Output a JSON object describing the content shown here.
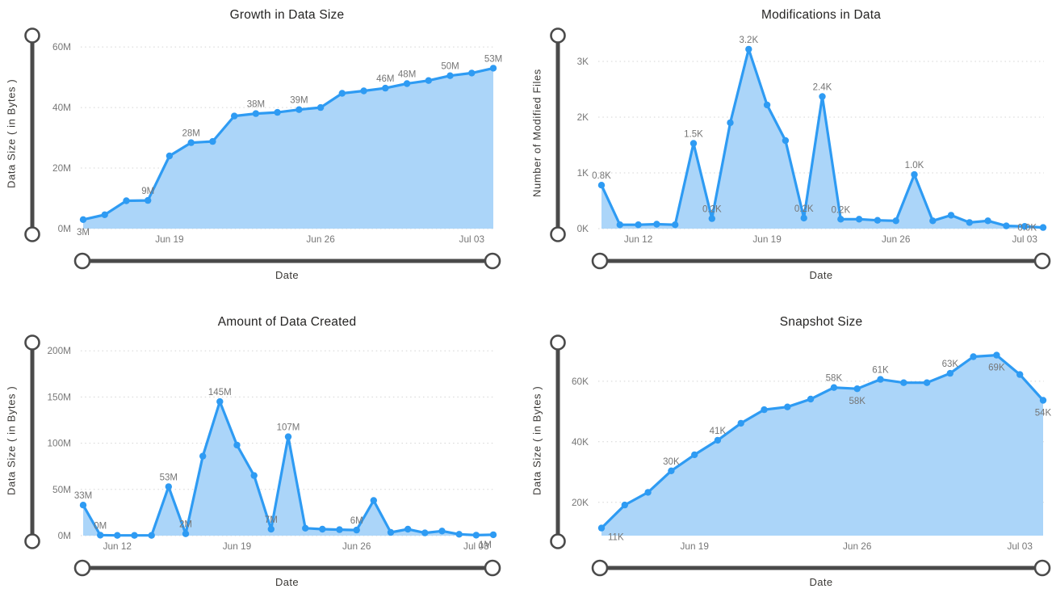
{
  "page": {
    "background": "#ffffff"
  },
  "colors": {
    "line": "#2E9BF3",
    "fill": "#ABD5F9",
    "grid": "#D4D4D4",
    "tick": "#777777",
    "data_label": "#757575",
    "title": "#252423",
    "axis_title": "#3A3835",
    "slider": "#4A4A4A",
    "slider_fill": "#FFFFFF"
  },
  "chart_data": [
    {
      "type": "area",
      "title": "Growth in Data Size",
      "xlabel": "Date",
      "ylabel": "Data Size ( in Bytes )",
      "unit": "M",
      "grid": "dotted-horizontal",
      "legend": "none",
      "ylim": [
        0,
        63.5
      ],
      "y_ticks": [
        {
          "v": 0,
          "label": "0M"
        },
        {
          "v": 20,
          "label": "20M"
        },
        {
          "v": 40,
          "label": "40M"
        },
        {
          "v": 60,
          "label": "60M"
        }
      ],
      "x": [
        "Jun 15",
        "Jun 16",
        "Jun 17",
        "Jun 18",
        "Jun 19",
        "Jun 20",
        "Jun 21",
        "Jun 22",
        "Jun 23",
        "Jun 24",
        "Jun 25",
        "Jun 26",
        "Jun 27",
        "Jun 28",
        "Jun 29",
        "Jun 30",
        "Jul 01",
        "Jul 02",
        "Jul 03",
        "Jul 04"
      ],
      "values": [
        3,
        4.6,
        9.2,
        9.3,
        24,
        28.4,
        28.8,
        37.2,
        38,
        38.4,
        39.3,
        40,
        44.7,
        45.5,
        46.4,
        47.9,
        48.9,
        50.5,
        51.4,
        53
      ],
      "x_ticks": [
        {
          "i": 4,
          "label": "Jun 19"
        },
        {
          "i": 11,
          "label": "Jun 26"
        },
        {
          "i": 18,
          "label": "Jul 03"
        }
      ],
      "point_labels": [
        {
          "i": 0,
          "text": "3M",
          "pos": "below"
        },
        {
          "i": 3,
          "text": "9M",
          "pos": "above"
        },
        {
          "i": 5,
          "text": "28M",
          "pos": "above"
        },
        {
          "i": 8,
          "text": "38M",
          "pos": "above"
        },
        {
          "i": 10,
          "text": "39M",
          "pos": "above"
        },
        {
          "i": 14,
          "text": "46M",
          "pos": "above"
        },
        {
          "i": 15,
          "text": "48M",
          "pos": "above"
        },
        {
          "i": 17,
          "text": "50M",
          "pos": "above"
        },
        {
          "i": 19,
          "text": "53M",
          "pos": "above"
        }
      ]
    },
    {
      "type": "area",
      "title": "Modifications in Data",
      "xlabel": "Date",
      "ylabel": "Number of Modified Files",
      "unit": "K",
      "grid": "dotted-horizontal",
      "legend": "none",
      "ylim": [
        0,
        3.45
      ],
      "y_ticks": [
        {
          "v": 0,
          "label": "0K"
        },
        {
          "v": 1,
          "label": "1K"
        },
        {
          "v": 2,
          "label": "2K"
        },
        {
          "v": 3,
          "label": "3K"
        }
      ],
      "x": [
        "Jun 10",
        "Jun 11",
        "Jun 12",
        "Jun 13",
        "Jun 14",
        "Jun 15",
        "Jun 16",
        "Jun 17",
        "Jun 18",
        "Jun 19",
        "Jun 20",
        "Jun 21",
        "Jun 22",
        "Jun 23",
        "Jun 24",
        "Jun 25",
        "Jun 26",
        "Jun 27",
        "Jun 28",
        "Jun 29",
        "Jun 30",
        "Jul 01",
        "Jul 02",
        "Jul 03",
        "Jul 04"
      ],
      "values": [
        0.78,
        0.07,
        0.07,
        0.08,
        0.07,
        1.53,
        0.18,
        1.9,
        3.22,
        2.22,
        1.58,
        0.19,
        2.37,
        0.17,
        0.17,
        0.15,
        0.14,
        0.97,
        0.14,
        0.24,
        0.11,
        0.14,
        0.05,
        0.04,
        0.02
      ],
      "x_ticks": [
        {
          "i": 2,
          "label": "Jun 12"
        },
        {
          "i": 9,
          "label": "Jun 19"
        },
        {
          "i": 16,
          "label": "Jun 26"
        },
        {
          "i": 23,
          "label": "Jul 03"
        }
      ],
      "point_labels": [
        {
          "i": 0,
          "text": "0.8K",
          "pos": "above"
        },
        {
          "i": 5,
          "text": "1.5K",
          "pos": "above"
        },
        {
          "i": 6,
          "text": "0.2K",
          "pos": "above"
        },
        {
          "i": 8,
          "text": "3.2K",
          "pos": "above"
        },
        {
          "i": 11,
          "text": "0.2K",
          "pos": "above"
        },
        {
          "i": 12,
          "text": "2.4K",
          "pos": "above"
        },
        {
          "i": 13,
          "text": "0.2K",
          "pos": "above"
        },
        {
          "i": 17,
          "text": "1.0K",
          "pos": "above"
        },
        {
          "i": 24,
          "text": "0.0K",
          "pos": "left"
        }
      ]
    },
    {
      "type": "area",
      "title": "Amount of Data Created",
      "xlabel": "Date",
      "ylabel": "Data Size ( in Bytes )",
      "unit": "M",
      "grid": "dotted-horizontal",
      "legend": "none",
      "ylim": [
        0,
        208
      ],
      "y_ticks": [
        {
          "v": 0,
          "label": "0M"
        },
        {
          "v": 50,
          "label": "50M"
        },
        {
          "v": 100,
          "label": "100M"
        },
        {
          "v": 150,
          "label": "150M"
        },
        {
          "v": 200,
          "label": "200M"
        }
      ],
      "x": [
        "Jun 10",
        "Jun 11",
        "Jun 12",
        "Jun 13",
        "Jun 14",
        "Jun 15",
        "Jun 16",
        "Jun 17",
        "Jun 18",
        "Jun 19",
        "Jun 20",
        "Jun 21",
        "Jun 22",
        "Jun 23",
        "Jun 24",
        "Jun 25",
        "Jun 26",
        "Jun 27",
        "Jun 28",
        "Jun 29",
        "Jun 30",
        "Jul 01",
        "Jul 02",
        "Jul 03",
        "Jul 04"
      ],
      "values": [
        33,
        0.5,
        0.3,
        0.3,
        0.3,
        53,
        2,
        86,
        145,
        98,
        65,
        7,
        107,
        8,
        7,
        6.5,
        6,
        38,
        3.5,
        7,
        3,
        5,
        1.5,
        0.5,
        1
      ],
      "x_ticks": [
        {
          "i": 2,
          "label": "Jun 12"
        },
        {
          "i": 9,
          "label": "Jun 19"
        },
        {
          "i": 16,
          "label": "Jun 26"
        },
        {
          "i": 23,
          "label": "Jul 03"
        }
      ],
      "point_labels": [
        {
          "i": 0,
          "text": "33M",
          "pos": "above"
        },
        {
          "i": 1,
          "text": "0M",
          "pos": "above"
        },
        {
          "i": 5,
          "text": "53M",
          "pos": "above"
        },
        {
          "i": 6,
          "text": "2M",
          "pos": "above"
        },
        {
          "i": 8,
          "text": "145M",
          "pos": "above"
        },
        {
          "i": 11,
          "text": "7M",
          "pos": "above"
        },
        {
          "i": 12,
          "text": "107M",
          "pos": "above"
        },
        {
          "i": 16,
          "text": "6M",
          "pos": "above"
        },
        {
          "i": 24,
          "text": "1M",
          "pos": "below-left"
        }
      ]
    },
    {
      "type": "area",
      "title": "Snapshot Size",
      "xlabel": "Date",
      "ylabel": "Data Size ( in Bytes )",
      "unit": "K",
      "grid": "dotted-horizontal",
      "legend": "none",
      "ylim": [
        9,
        72.5
      ],
      "y_ticks": [
        {
          "v": 20,
          "label": "20K"
        },
        {
          "v": 40,
          "label": "40K"
        },
        {
          "v": 60,
          "label": "60K"
        }
      ],
      "x": [
        "Jun 15",
        "Jun 16",
        "Jun 17",
        "Jun 18",
        "Jun 19",
        "Jun 20",
        "Jun 21",
        "Jun 22",
        "Jun 23",
        "Jun 24",
        "Jun 25",
        "Jun 26",
        "Jun 27",
        "Jun 28",
        "Jun 29",
        "Jun 30",
        "Jul 01",
        "Jul 02",
        "Jul 03",
        "Jul 04"
      ],
      "values": [
        11.5,
        19.1,
        23.3,
        30.4,
        35.7,
        40.5,
        46.1,
        50.6,
        51.5,
        54.1,
        57.9,
        57.5,
        60.6,
        59.5,
        59.5,
        62.6,
        68.1,
        68.6,
        62.2,
        53.7
      ],
      "x_ticks": [
        {
          "i": 4,
          "label": "Jun 19"
        },
        {
          "i": 11,
          "label": "Jun 26"
        },
        {
          "i": 18,
          "label": "Jul 03"
        }
      ],
      "point_labels": [
        {
          "i": 0,
          "text": "11K",
          "pos": "below-right"
        },
        {
          "i": 3,
          "text": "30K",
          "pos": "above"
        },
        {
          "i": 5,
          "text": "41K",
          "pos": "above"
        },
        {
          "i": 10,
          "text": "58K",
          "pos": "above"
        },
        {
          "i": 11,
          "text": "58K",
          "pos": "below"
        },
        {
          "i": 12,
          "text": "61K",
          "pos": "above"
        },
        {
          "i": 15,
          "text": "63K",
          "pos": "above"
        },
        {
          "i": 17,
          "text": "69K",
          "pos": "below"
        },
        {
          "i": 19,
          "text": "54K",
          "pos": "below"
        }
      ]
    }
  ]
}
